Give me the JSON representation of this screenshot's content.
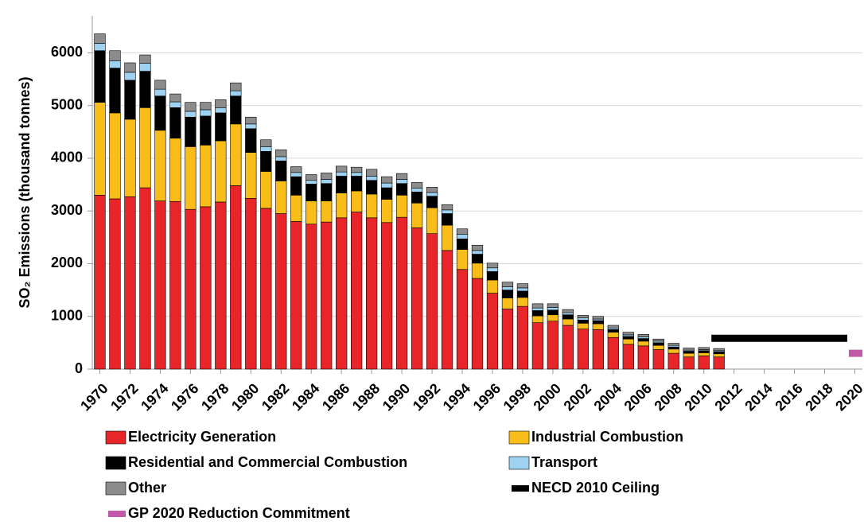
{
  "chart_data": {
    "type": "stacked_bar",
    "y_label": "SO₂ Emissions (thousand tonnes)",
    "x": [
      1970,
      1971,
      1972,
      1973,
      1974,
      1975,
      1976,
      1977,
      1978,
      1979,
      1980,
      1981,
      1982,
      1983,
      1984,
      1985,
      1986,
      1987,
      1988,
      1989,
      1990,
      1991,
      1992,
      1993,
      1994,
      1995,
      1996,
      1997,
      1998,
      1999,
      2000,
      2001,
      2002,
      2003,
      2004,
      2005,
      2006,
      2007,
      2008,
      2009,
      2010,
      2011
    ],
    "series": [
      {
        "name": "Electricity Generation",
        "color": "#e8262a",
        "values": [
          3300,
          3230,
          3270,
          3440,
          3190,
          3180,
          3030,
          3080,
          3170,
          3480,
          3240,
          3050,
          2950,
          2800,
          2750,
          2790,
          2870,
          2980,
          2870,
          2780,
          2880,
          2680,
          2570,
          2250,
          1890,
          1720,
          1440,
          1140,
          1190,
          880,
          910,
          830,
          760,
          750,
          600,
          470,
          440,
          370,
          300,
          230,
          250,
          230
        ]
      },
      {
        "name": "Industrial Combustion",
        "color": "#f9bd19",
        "values": [
          1760,
          1630,
          1470,
          1520,
          1340,
          1200,
          1190,
          1170,
          1160,
          1170,
          870,
          700,
          620,
          500,
          440,
          400,
          470,
          400,
          450,
          440,
          420,
          470,
          490,
          480,
          380,
          290,
          250,
          210,
          170,
          130,
          120,
          120,
          110,
          110,
          100,
          100,
          90,
          80,
          80,
          70,
          60,
          60
        ]
      },
      {
        "name": "Residential and Commercial Combustion",
        "color": "#000000",
        "values": [
          980,
          850,
          740,
          690,
          650,
          580,
          560,
          550,
          530,
          530,
          450,
          380,
          380,
          350,
          320,
          330,
          320,
          280,
          260,
          220,
          220,
          210,
          220,
          220,
          200,
          170,
          160,
          150,
          120,
          100,
          90,
          80,
          60,
          60,
          50,
          50,
          50,
          50,
          40,
          40,
          40,
          40
        ]
      },
      {
        "name": "Transport",
        "color": "#9fd1f0",
        "values": [
          140,
          140,
          150,
          150,
          130,
          110,
          110,
          120,
          100,
          100,
          90,
          90,
          80,
          80,
          70,
          80,
          80,
          70,
          80,
          90,
          80,
          70,
          70,
          70,
          90,
          70,
          70,
          60,
          60,
          50,
          50,
          40,
          40,
          30,
          30,
          30,
          30,
          30,
          30,
          20,
          20,
          20
        ]
      },
      {
        "name": "Other",
        "color": "#8c8c8c",
        "values": [
          180,
          190,
          180,
          160,
          170,
          150,
          170,
          140,
          150,
          150,
          130,
          130,
          130,
          110,
          110,
          120,
          110,
          100,
          130,
          120,
          110,
          110,
          100,
          100,
          100,
          100,
          90,
          90,
          80,
          80,
          70,
          60,
          50,
          50,
          50,
          50,
          50,
          40,
          40,
          40,
          40,
          40
        ]
      }
    ],
    "lines": [
      {
        "name": "NECD 2010 Ceiling",
        "color": "#000000",
        "x": [
          2010.5,
          2019.5
        ],
        "values": [
          585,
          585
        ]
      },
      {
        "name": "GP 2020 Reduction Commitment",
        "color": "#c158a8",
        "x": [
          2019.6,
          2020.5
        ],
        "values": [
          300,
          300
        ]
      }
    ],
    "xlim": [
      1969.5,
      2020.5
    ],
    "xticks": [
      1970,
      1972,
      1974,
      1976,
      1978,
      1980,
      1982,
      1984,
      1986,
      1988,
      1990,
      1992,
      1994,
      1996,
      1998,
      2000,
      2002,
      2004,
      2006,
      2008,
      2010,
      2012,
      2014,
      2016,
      2018,
      2020
    ],
    "ylim": [
      0,
      6700
    ],
    "yticks": [
      0,
      1000,
      2000,
      3000,
      4000,
      5000,
      6000
    ],
    "grid": true
  }
}
